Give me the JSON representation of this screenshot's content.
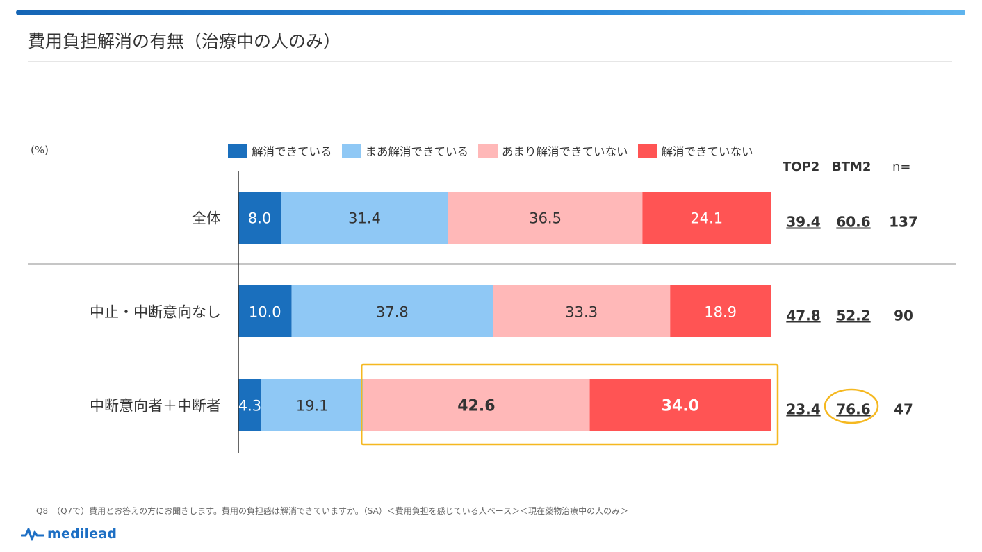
{
  "title": "費用負担解消の有無（治療中の人のみ）",
  "unit_label": "(%)",
  "column_headers": {
    "top2": "TOP2",
    "btm2": "BTM2",
    "n": "n="
  },
  "footnote": "Q8　（Q7で）費用とお答えの方にお聞きします。費用の負担感は解消できていますか。（SA）＜費用負担を感じている人ベース＞＜現在薬物治療中の人のみ＞",
  "logo": {
    "text": "medilead",
    "icon": "pulse-wave-icon",
    "color": "#1d6fc4"
  },
  "colors": {
    "highlight": "#f5b820"
  },
  "chart_data": {
    "type": "bar",
    "orientation": "horizontal",
    "stacked": true,
    "xlim": [
      0,
      100
    ],
    "categories": [
      "全体",
      "中止・中断意向なし",
      "中断意向者＋中断者"
    ],
    "series": [
      {
        "name": "解消できている",
        "color": "#1a6fbd",
        "values": [
          8.0,
          10.0,
          4.3
        ]
      },
      {
        "name": "まあ解消できている",
        "color": "#8fc8f5",
        "values": [
          31.4,
          37.8,
          19.1
        ]
      },
      {
        "name": "あまり解消できていない",
        "color": "#ffb8b8",
        "values": [
          36.5,
          33.3,
          42.6
        ]
      },
      {
        "name": "解消できていない",
        "color": "#ff5454",
        "values": [
          24.1,
          18.9,
          34.0
        ]
      }
    ],
    "top2": [
      39.4,
      47.8,
      23.4
    ],
    "btm2": [
      60.6,
      52.2,
      76.6
    ],
    "n": [
      137,
      90,
      47
    ],
    "highlights": {
      "boxed_category": "中断意向者＋中断者",
      "boxed_series": [
        "あまり解消できていない",
        "解消できていない"
      ],
      "circled_btm2_category": "中断意向者＋中断者"
    }
  }
}
